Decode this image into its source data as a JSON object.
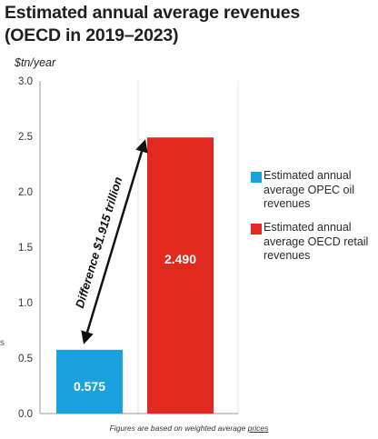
{
  "title_lines": [
    "Estimated annual average revenues",
    "(OECD in 2019–2023)"
  ],
  "footnote": {
    "text": "Figures are based on weighted average",
    "link": "prices"
  },
  "edge_char": "s",
  "chart_data": {
    "type": "bar",
    "title": "Estimated annual average revenues (OECD in 2019–2023)",
    "ylabel": "$tn/year",
    "ylim": [
      0,
      3.0
    ],
    "yticks": [
      "0.0",
      "0.5",
      "1.0",
      "1.5",
      "2.0",
      "2.5",
      "3.0"
    ],
    "grid": "vertical",
    "legend_position": "right",
    "series": [
      {
        "name": "Estimated annual average OPEC oil revenues",
        "value": 0.575,
        "label": "0.575",
        "color": "#1ba1dc"
      },
      {
        "name": "Estimated annual average OECD retail revenues",
        "value": 2.49,
        "label": "2.490",
        "color": "#e0291f"
      }
    ],
    "annotation": {
      "text": "Difference $1.915 trillion",
      "from_series": 0,
      "to_series": 1
    }
  },
  "legend_lines": [
    [
      "Estimated annual",
      "average OPEC oil",
      "revenues"
    ],
    [
      "Estimated annual",
      "average OECD retail",
      "revenues"
    ]
  ]
}
